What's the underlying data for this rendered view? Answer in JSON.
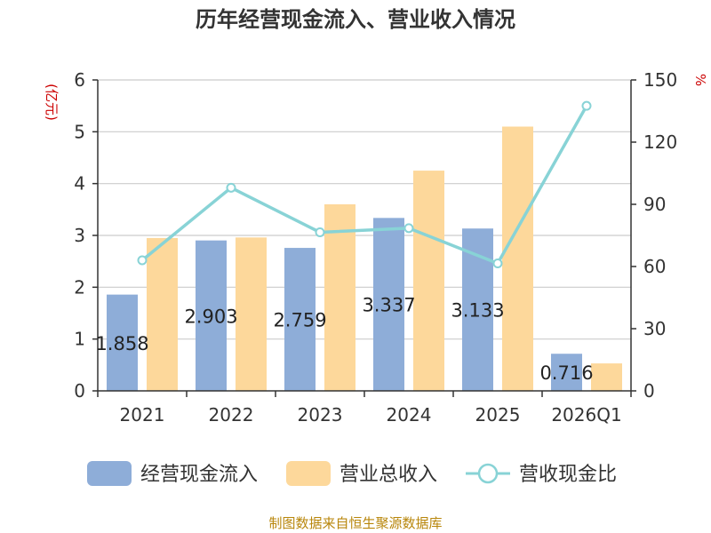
{
  "chart_data": {
    "type": "bar",
    "title": "历年经营现金流入、营业收入情况",
    "categories": [
      "2021",
      "2022",
      "2023",
      "2024",
      "2025",
      "2026Q1"
    ],
    "series": [
      {
        "name": "经营现金流入",
        "type": "bar",
        "axis": "left",
        "color": "#8eadd8",
        "values": [
          1.858,
          2.903,
          2.759,
          3.337,
          3.133,
          0.716
        ],
        "labels": [
          "1.858",
          "2.903",
          "2.759",
          "3.337",
          "3.133",
          "0.716"
        ]
      },
      {
        "name": "营业总收入",
        "type": "bar",
        "axis": "left",
        "color": "#fdd89b",
        "values": [
          2.95,
          2.96,
          3.6,
          4.25,
          5.1,
          0.53
        ]
      },
      {
        "name": "营收现金比",
        "type": "line",
        "axis": "right",
        "color": "#88d3d6",
        "values": [
          63,
          98,
          76.5,
          78.5,
          61.5,
          137.5
        ]
      }
    ],
    "y_left": {
      "unit": "(亿元)",
      "min": 0,
      "max": 6,
      "ticks": [
        "0",
        "1",
        "2",
        "3",
        "4",
        "5",
        "6"
      ]
    },
    "y_right": {
      "unit": "%",
      "min": 0,
      "max": 150,
      "ticks": [
        "0",
        "30",
        "60",
        "90",
        "120",
        "150"
      ]
    },
    "grid": true,
    "legend_position": "bottom"
  },
  "source": "制图数据来自恒生聚源数据库"
}
